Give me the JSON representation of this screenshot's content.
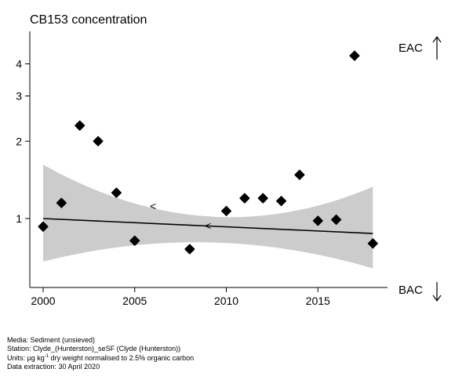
{
  "title": "CB153 concentration",
  "meta": {
    "media": "Media: Sediment (unsieved)",
    "station": "Station: Clyde_(Hunterston)_seSF (Clyde (Hunterston))",
    "units_prefix": "Units:  µg kg",
    "units_sup": "-1",
    "units_suffix": " dry weight normalised to 2.5% organic carbon",
    "extraction": "Data extraction: 30 April 2020"
  },
  "chart_data": {
    "type": "scatter",
    "title": "CB153 concentration",
    "y_scale": "log",
    "xlim": [
      1999.3,
      2018.9
    ],
    "ylim": [
      0.62,
      4.8
    ],
    "x_ticks": [
      2000,
      2005,
      2010,
      2015
    ],
    "y_ticks": [
      1,
      2,
      3,
      4
    ],
    "grid": false,
    "points": [
      {
        "x": 2000,
        "y": 0.93
      },
      {
        "x": 2001,
        "y": 1.15
      },
      {
        "x": 2002,
        "y": 2.3
      },
      {
        "x": 2003,
        "y": 2.0
      },
      {
        "x": 2004,
        "y": 1.26
      },
      {
        "x": 2005,
        "y": 0.82
      },
      {
        "x": 2008,
        "y": 0.76
      },
      {
        "x": 2010,
        "y": 1.07
      },
      {
        "x": 2011,
        "y": 1.2
      },
      {
        "x": 2012,
        "y": 1.2
      },
      {
        "x": 2013,
        "y": 1.17
      },
      {
        "x": 2014,
        "y": 1.48
      },
      {
        "x": 2015,
        "y": 0.98
      },
      {
        "x": 2016,
        "y": 0.99
      },
      {
        "x": 2017,
        "y": 4.3
      },
      {
        "x": 2018,
        "y": 0.8
      }
    ],
    "trend": {
      "x": [
        2000,
        2018
      ],
      "y": [
        1.0,
        0.875
      ],
      "band_upper": [
        1.62,
        1.33
      ],
      "band_lower": [
        0.68,
        0.64
      ],
      "band_color": "#cccccc"
    },
    "annotations": [
      {
        "text": "<",
        "x": 2006,
        "y": 1.12
      },
      {
        "text": "<",
        "x": 2009,
        "y": 0.94
      }
    ],
    "reference_levels": [
      {
        "label": "EAC",
        "direction": "up"
      },
      {
        "label": "BAC",
        "direction": "down"
      }
    ]
  }
}
